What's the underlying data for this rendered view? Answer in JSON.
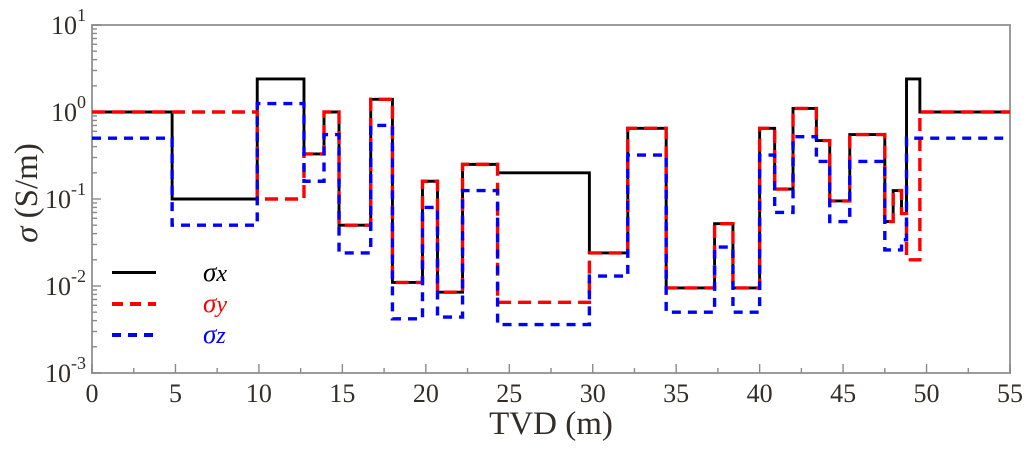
{
  "figure": {
    "background": "#ffffff"
  },
  "axes": {
    "x_label": "TVD (m)",
    "y_label_sigma": "σ",
    "y_label_units": " (S/m)",
    "x_ticks": [
      0,
      5,
      10,
      15,
      20,
      25,
      30,
      35,
      40,
      45,
      50,
      55
    ],
    "x_minor_step": 2.5,
    "y_tick_base": "10",
    "y_tick_exponents": [
      1,
      0,
      -1,
      -2,
      -3
    ],
    "frame_color": "#9c9c9c",
    "tick_color": "#8a8a8a",
    "label_color": "#332d28"
  },
  "legend": {
    "entries": [
      {
        "label_sigma": "σ",
        "label_sub": "x",
        "color": "#000000",
        "style": "solid"
      },
      {
        "label_sigma": "σ",
        "label_sub": "y",
        "color": "#ff0000",
        "style": "dashed-long"
      },
      {
        "label_sigma": "σ",
        "label_sub": "z",
        "color": "#0000ff",
        "style": "dashed"
      }
    ]
  },
  "chart_data": {
    "type": "line",
    "subtype": "log-step-profile",
    "title": "",
    "xlabel": "TVD (m)",
    "ylabel": "σ (S/m)",
    "xlim": [
      0,
      55
    ],
    "ylim_log10": [
      -3,
      1
    ],
    "y_scale": "log",
    "grid": false,
    "legend_position": "lower-left-inside",
    "boundaries_m": [
      0,
      4.8,
      9.9,
      12.7,
      13.9,
      14.8,
      16.7,
      18.0,
      19.8,
      20.7,
      22.2,
      24.3,
      29.8,
      32.1,
      34.4,
      37.3,
      38.4,
      40.0,
      40.9,
      42.0,
      43.4,
      44.2,
      45.4,
      47.5,
      48.0,
      48.5,
      48.8,
      49.6,
      55
    ],
    "series": [
      {
        "name": "σx",
        "color": "#000000",
        "style": "solid",
        "values": [
          1.0,
          0.1,
          2.4,
          0.33,
          1.0,
          0.05,
          1.4,
          0.011,
          0.16,
          0.0085,
          0.25,
          0.2,
          0.024,
          0.65,
          0.0095,
          0.052,
          0.0095,
          0.65,
          0.13,
          1.1,
          0.47,
          0.095,
          0.55,
          0.055,
          0.125,
          0.068,
          2.4,
          1.0
        ]
      },
      {
        "name": "σy",
        "color": "#ff0000",
        "style": "dashed-long",
        "values": [
          1.0,
          1.0,
          0.1,
          0.33,
          1.0,
          0.05,
          1.4,
          0.011,
          0.16,
          0.0085,
          0.25,
          0.0065,
          0.024,
          0.65,
          0.0095,
          0.052,
          0.0095,
          0.65,
          0.13,
          1.1,
          0.47,
          0.095,
          0.55,
          0.055,
          0.125,
          0.068,
          0.02,
          1.0
        ]
      },
      {
        "name": "σz",
        "color": "#0000ff",
        "style": "dashed",
        "values": [
          0.5,
          0.05,
          1.25,
          0.16,
          0.55,
          0.024,
          0.7,
          0.0042,
          0.08,
          0.0044,
          0.125,
          0.0036,
          0.013,
          0.32,
          0.005,
          0.028,
          0.005,
          0.32,
          0.07,
          0.52,
          0.27,
          0.055,
          0.27,
          0.026,
          0.026,
          0.034,
          0.5,
          0.5
        ]
      }
    ]
  }
}
